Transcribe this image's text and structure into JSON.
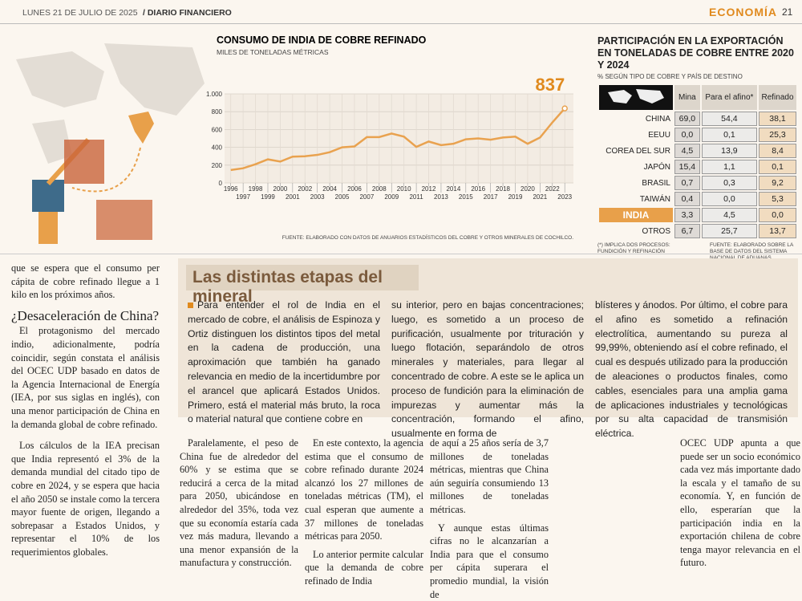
{
  "header": {
    "date": "LUNES 21 DE JULIO DE 2025",
    "publication": "/ DIARIO FINANCIERO",
    "section": "ECONOMÍA",
    "page": "21"
  },
  "chart_data": {
    "type": "line",
    "title": "CONSUMO DE INDIA DE COBRE REFINADO",
    "subtitle": "MILES DE TONELADAS MÉTRICAS",
    "x": [
      1996,
      1997,
      1998,
      1999,
      2000,
      2001,
      2002,
      2003,
      2004,
      2005,
      2006,
      2007,
      2008,
      2009,
      2010,
      2011,
      2012,
      2013,
      2014,
      2015,
      2016,
      2017,
      2018,
      2019,
      2020,
      2021,
      2022,
      2023
    ],
    "values": [
      145,
      165,
      210,
      265,
      240,
      295,
      300,
      315,
      345,
      400,
      410,
      515,
      515,
      555,
      520,
      405,
      465,
      425,
      440,
      490,
      500,
      485,
      510,
      520,
      440,
      510,
      680,
      837
    ],
    "color": "#e9a24f",
    "xlim": [
      1995.5,
      2023.7
    ],
    "ylim": [
      0,
      1000
    ],
    "yticks": [
      0,
      200,
      400,
      600,
      800,
      {
        "value": 1000,
        "label": "1.000"
      }
    ],
    "grid": true,
    "source": "FUENTE: ELABORADO CON DATOS DE ANUARIOS ESTADÍSTICOS DEL COBRE Y OTROS MINERALES DE COCHILCO."
  },
  "export_table": {
    "title": "PARTICIPACIÓN EN LA EXPORTACIÓN EN TONELADAS DE COBRE ENTRE 2020 Y 2024",
    "subtitle": "% SEGÚN TIPO DE COBRE Y PAÍS DE DESTINO",
    "columns": [
      "Mina",
      "Para el afino*",
      "Refinado"
    ],
    "rows": [
      {
        "country": "CHINA",
        "values": [
          "69,0",
          "54,4",
          "38,1"
        ]
      },
      {
        "country": "EEUU",
        "values": [
          "0,0",
          "0,1",
          "25,3"
        ]
      },
      {
        "country": "COREA DEL SUR",
        "values": [
          "4,5",
          "13,9",
          "8,4"
        ]
      },
      {
        "country": "JAPÓN",
        "values": [
          "15,4",
          "1,1",
          "0,1"
        ]
      },
      {
        "country": "BRASIL",
        "values": [
          "0,7",
          "0,3",
          "9,2"
        ]
      },
      {
        "country": "TAIWÁN",
        "values": [
          "0,4",
          "0,0",
          "5,3"
        ]
      },
      {
        "country": "INDIA",
        "values": [
          "3,3",
          "4,5",
          "0,0"
        ]
      },
      {
        "country": "OTROS",
        "values": [
          "6,7",
          "25,7",
          "13,7"
        ]
      }
    ],
    "note": "(*) IMPLICA DOS PROCESOS: FUNDICIÓN Y REFINACIÓN",
    "source": "FUENTE: ELABORADO SOBRE LA BASE DE DATOS DEL SISTEMA NACIONAL DE ADUANAS."
  },
  "article": {
    "lead": "que se espera que el consumo per cápita de cobre refinado llegue a 1 kilo en los próximos años.",
    "heading": "¿Desaceleración de China?",
    "paragraphs": [
      "El protagonismo del mercado indio, adicionalmente, podría coincidir, según constata el análisis del OCEC UDP basado en datos de la Agencia Internacional de Energía (IEA, por sus siglas en inglés), con una menor participación de China en la demanda global de cobre refinado.",
      "Los cálculos de la IEA precisan que India representó el 3% de la demanda mundial del citado tipo de cobre en 2024, y se espera que hacia el año 2050 se instale como la tercera mayor fuente de origen, llegando a sobrepasar a Estados Unidos, y representar el 10% de los requerimientos globales.",
      "Paralelamente, el peso de China fue de alrededor del 60% y se estima que se reducirá a cerca de la mitad para 2050, ubicándose en alrededor del 35%, toda vez que su economía estaría cada vez más madura, llevando a una menor expansión de la manufactura y construcción.",
      "En este contexto, la agencia estima que el consumo de cobre refinado durante 2024 alcanzó los 27 millones de toneladas métricas (TM), el cual esperan que aumente a 37 millones de toneladas métricas para 2050.",
      "Lo anterior permite calcular que la demanda de cobre refinado de India",
      "de aquí a 25 años sería de 3,7 millones de toneladas métricas, mientras que China aún seguiría consumiendo 13 millones de toneladas métricas.",
      "Y aunque estas últimas cifras no le alcanzarían a India para que el consumo per cápita superara el promedio mundial, la visión de",
      "OCEC UDP apunta a que puede ser un socio económico cada vez más importante dado la escala y el tamaño de su economía. Y, en función de ello, esperarían que la participación india en la exportación chilena de cobre tenga mayor relevancia en el futuro."
    ]
  },
  "sidebar": {
    "title": "Las distintas etapas del mineral",
    "columns": [
      "Para entender el rol de India en el mercado de cobre, el análisis de Espinoza y Ortiz distinguen los distintos tipos del metal en la cadena de producción, una aproximación que también ha ganado relevancia en medio de la incertidumbre por el arancel que aplicará Estados Unidos. Primero, está el material más bruto, la roca o material natural que contiene cobre en",
      "su interior, pero en bajas concentraciones; luego, es sometido a un proceso de purificación, usualmente por trituración y luego flotación, separándolo de otros minerales y materiales, para llegar al concentrado de cobre. A este se le aplica un proceso de fundición para la eliminación de impurezas y aumentar más la concentración, formando el afino, usualmente en forma de",
      "blísteres y ánodos. Por último, el cobre para el afino es sometido a refinación electrolítica, aumentando su pureza al 99,99%, obteniendo así el cobre refinado, el cual es después utilizado para la producción de aleaciones o productos finales, como cables, esenciales para una amplia gama de aplicaciones industriales y tecnológicas por su alta capacidad de transmisión eléctrica."
    ]
  }
}
